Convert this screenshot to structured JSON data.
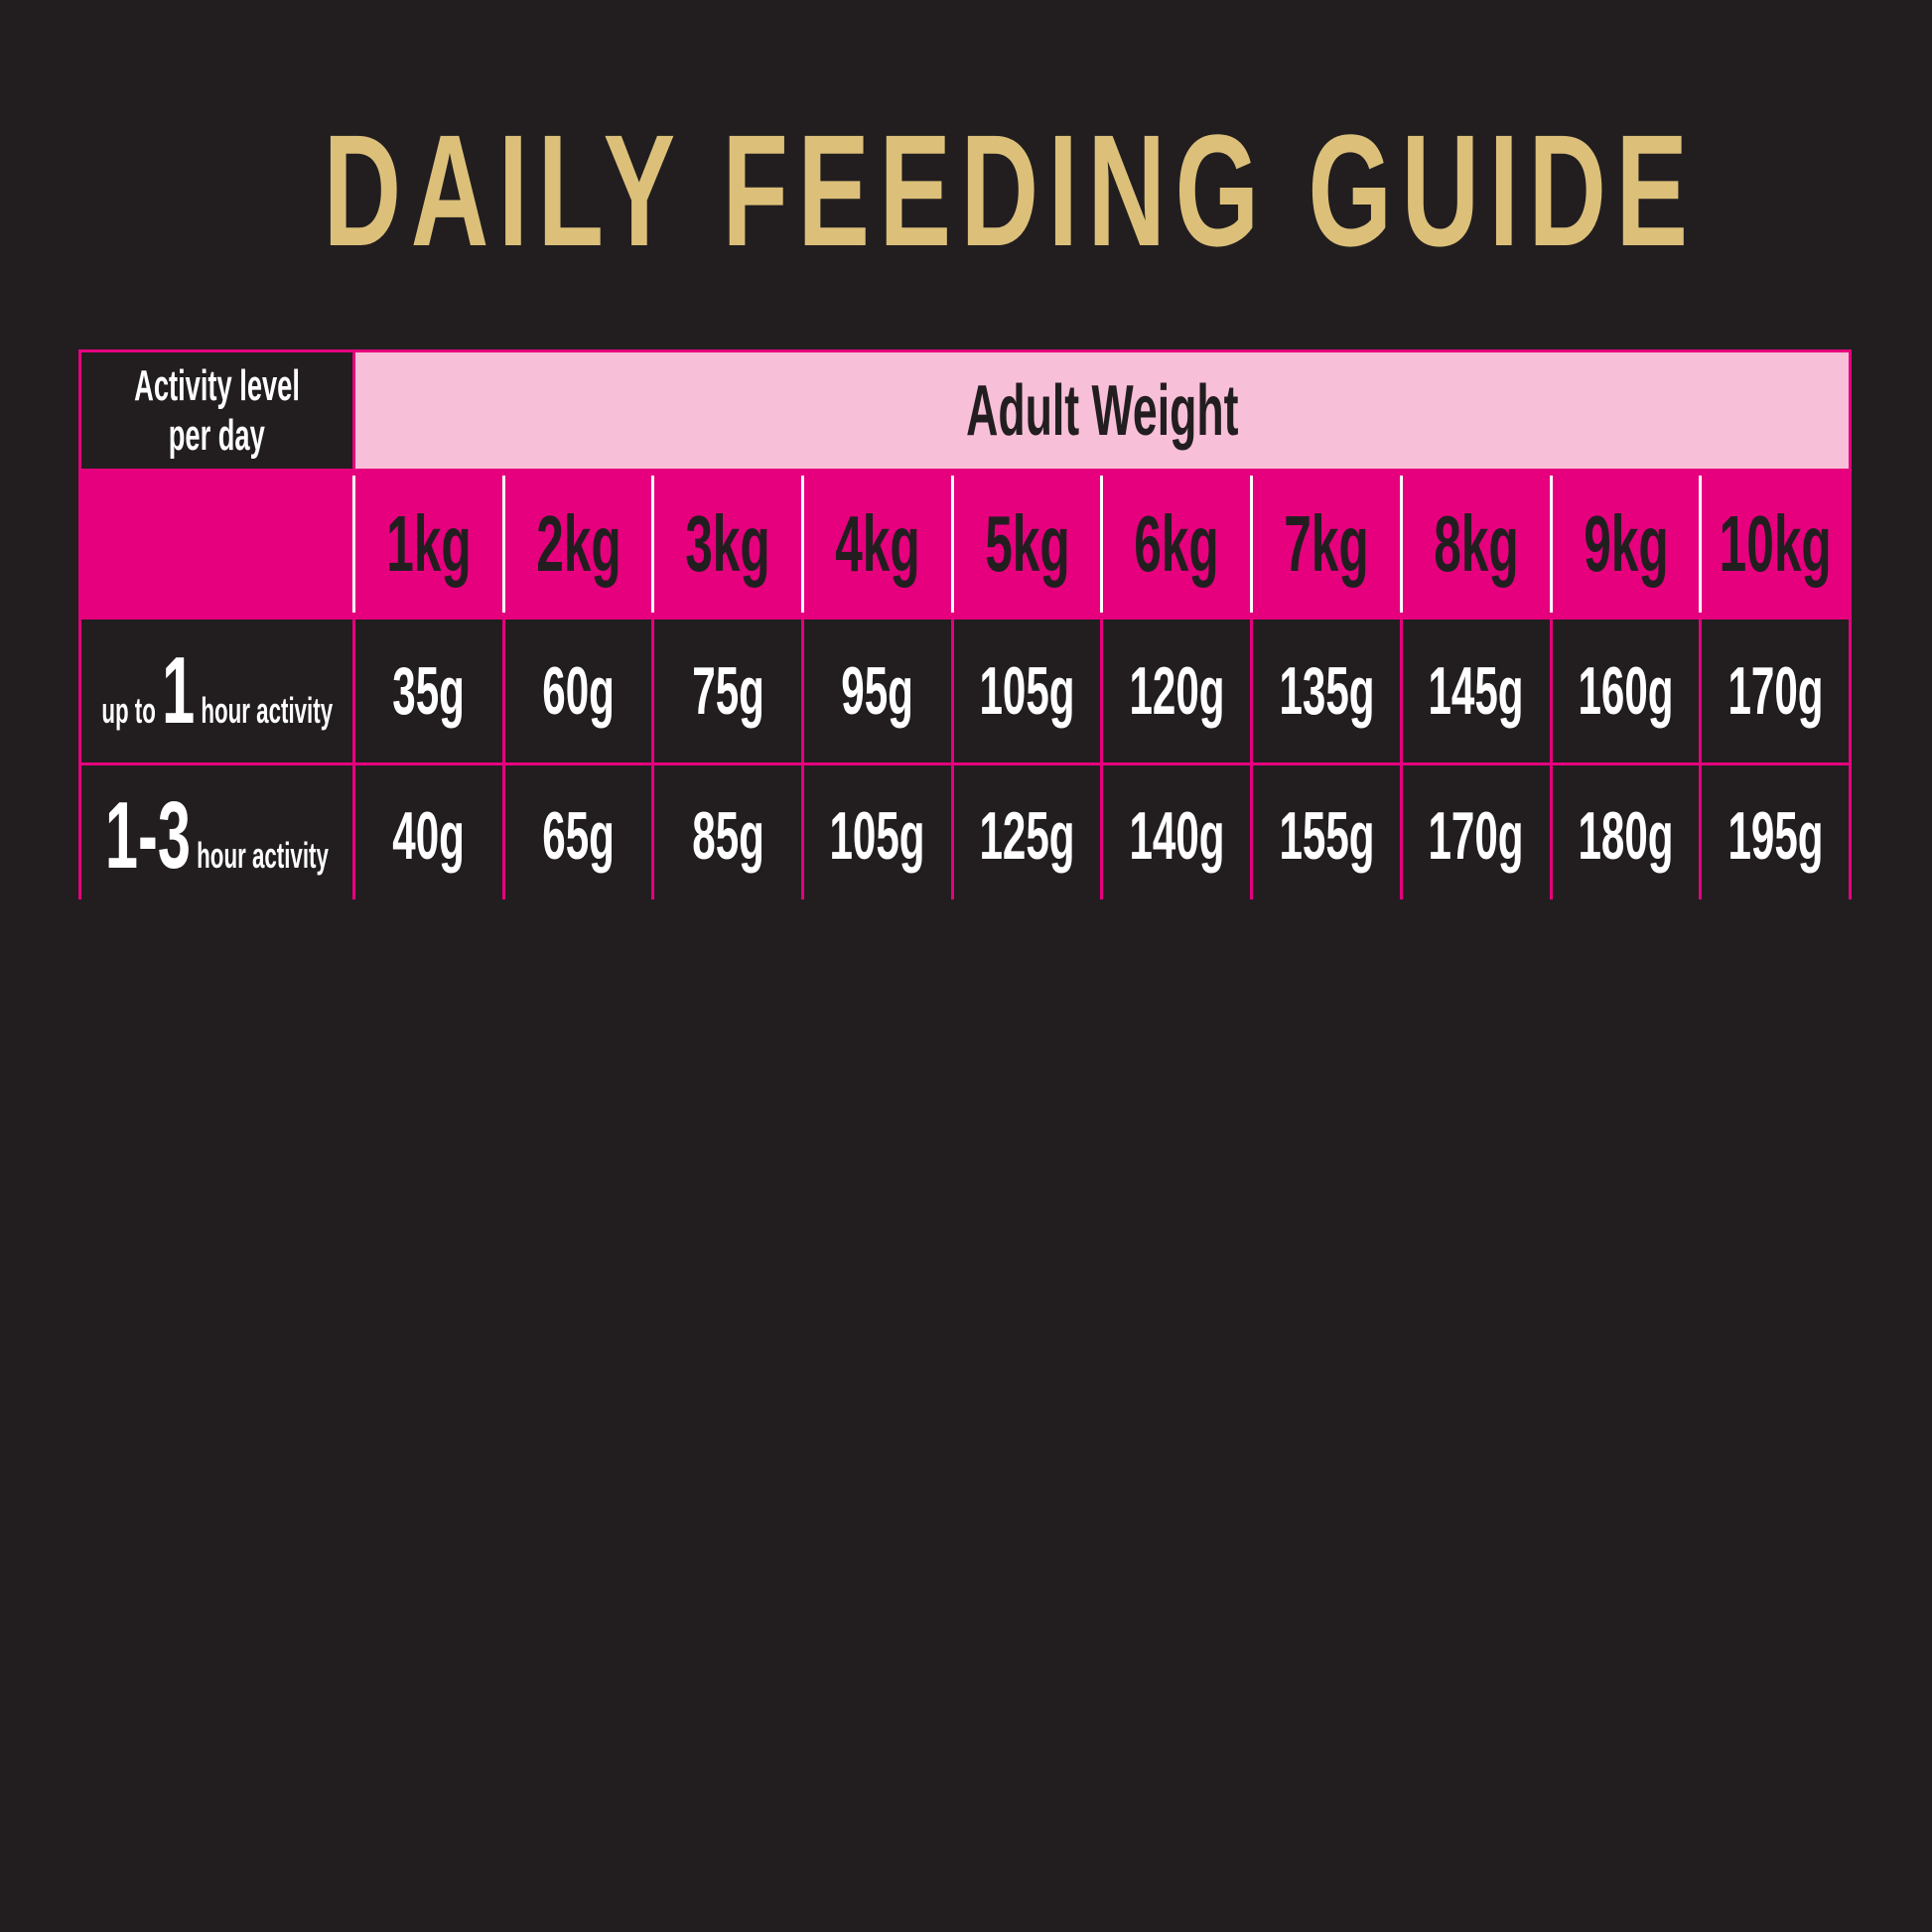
{
  "title": "DAILY FEEDING GUIDE",
  "colors": {
    "background": "#221e20",
    "title": "#dcc07a",
    "accent": "#e6007e",
    "header_light": "#f8bfd8"
  },
  "table": {
    "corner_line1": "Activity level",
    "corner_line2": "per day",
    "group_header": "Adult Weight",
    "weights": [
      "1kg",
      "2kg",
      "3kg",
      "4kg",
      "5kg",
      "6kg",
      "7kg",
      "8kg",
      "9kg",
      "10kg"
    ],
    "rows": [
      {
        "prefix": "up to",
        "number": "1",
        "suffix": "hour activity",
        "values": [
          "35g",
          "60g",
          "75g",
          "95g",
          "105g",
          "120g",
          "135g",
          "145g",
          "160g",
          "170g"
        ]
      },
      {
        "prefix": "",
        "number": "1-3",
        "suffix": "hour activity",
        "values": [
          "40g",
          "65g",
          "85g",
          "105g",
          "125g",
          "140g",
          "155g",
          "170g",
          "180g",
          "195g"
        ]
      }
    ]
  }
}
